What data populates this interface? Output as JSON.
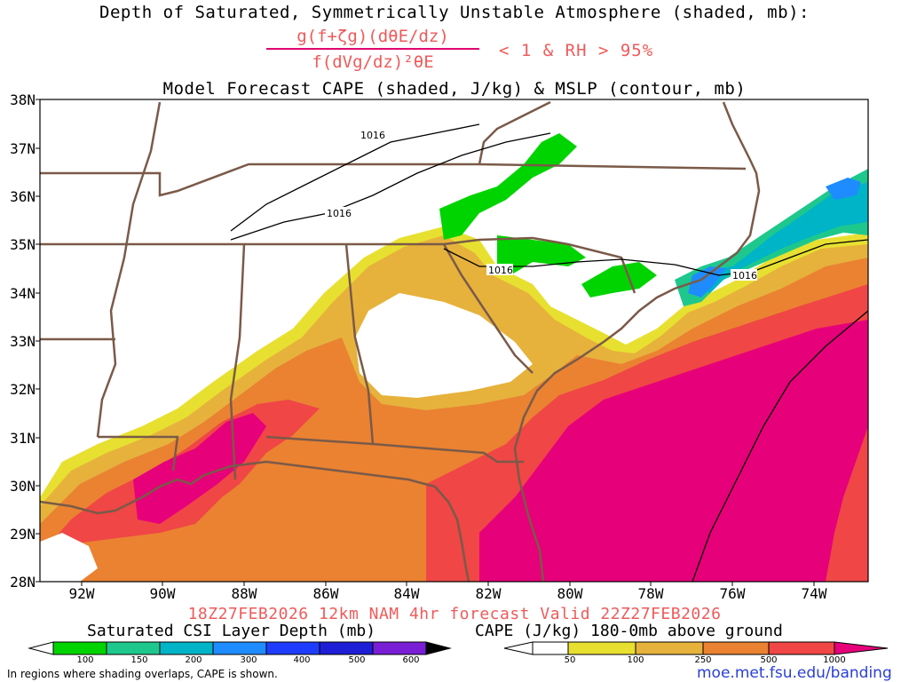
{
  "title_line1": "Depth of Saturated, Symmetrically Unstable Atmosphere (shaded, mb):",
  "formula": {
    "numerator": "g(f+ζg)(dθE/dz)",
    "denominator": "f(dVg/dz)²θE"
  },
  "condition": "< 1 & RH > 95%",
  "title_line3": "Model Forecast CAPE (shaded, J/kg) & MSLP (contour, mb)",
  "lat_labels": [
    "38N",
    "37N",
    "36N",
    "35N",
    "34N",
    "33N",
    "32N",
    "31N",
    "30N",
    "29N",
    "28N"
  ],
  "lon_labels": [
    "92W",
    "90W",
    "88W",
    "86W",
    "84W",
    "82W",
    "80W",
    "78W",
    "76W",
    "74W"
  ],
  "contour_labels": [
    "1016",
    "1016",
    "1016",
    "1016"
  ],
  "valid_line": "18Z27FEB2026 12km NAM 4hr forecast Valid 22Z27FEB2026",
  "csi_colorbar": {
    "title": "Saturated CSI Layer Depth (mb)",
    "ticks": [
      "100",
      "150",
      "200",
      "300",
      "400",
      "500",
      "600"
    ],
    "colors": [
      "#ffffff",
      "#00d400",
      "#1ec88c",
      "#00b4c8",
      "#1e8cff",
      "#1e3cff",
      "#7a1ed6",
      "#000000"
    ]
  },
  "cape_colorbar": {
    "title": "CAPE (J/kg) 180-0mb above ground",
    "ticks": [
      "50",
      "100",
      "250",
      "500",
      "1000"
    ],
    "colors": [
      "#ffffff",
      "#e8e030",
      "#e6b23c",
      "#ea8232",
      "#f04646",
      "#e6007a"
    ]
  },
  "footnote": "In regions where shading overlaps, CAPE is shown.",
  "website": "moe.met.fsu.edu/banding"
}
